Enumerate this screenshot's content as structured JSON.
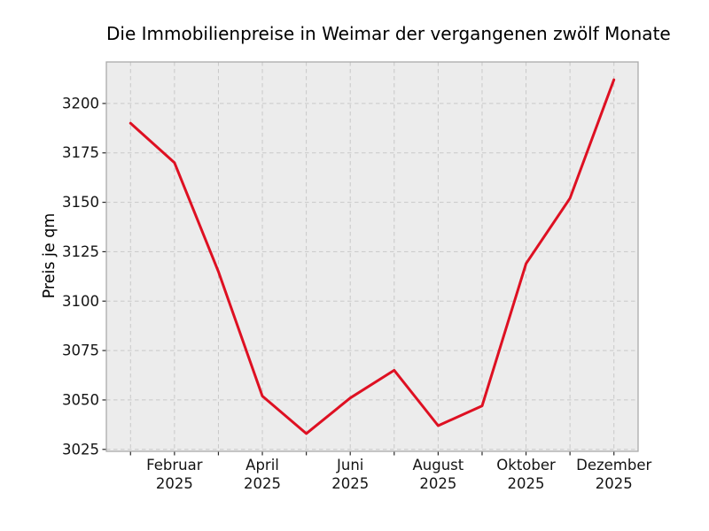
{
  "chart_data": {
    "type": "line",
    "title": "Die Immobilienpreise in Weimar der vergangenen zwölf Monate",
    "xlabel": "",
    "ylabel": "Preis je qm",
    "x": [
      1,
      2,
      3,
      4,
      5,
      6,
      7,
      8,
      9,
      10,
      11,
      12
    ],
    "values": [
      3190,
      3170,
      3115,
      3052,
      3033,
      3051,
      3065,
      3037,
      3047,
      3119,
      3152,
      3212
    ],
    "xlim": [
      0.45,
      12.55
    ],
    "ylim": [
      3024,
      3221
    ],
    "yticks": [
      3025,
      3050,
      3075,
      3100,
      3125,
      3150,
      3175,
      3200
    ],
    "xticks": [
      {
        "pos": 2,
        "month": "Februar",
        "year": "2025"
      },
      {
        "pos": 4,
        "month": "April",
        "year": "2025"
      },
      {
        "pos": 6,
        "month": "Juni",
        "year": "2025"
      },
      {
        "pos": 8,
        "month": "August",
        "year": "2025"
      },
      {
        "pos": 10,
        "month": "Oktober",
        "year": "2025"
      },
      {
        "pos": 12,
        "month": "Dezember",
        "year": "2025"
      }
    ],
    "grid": true,
    "legend": null,
    "styles": {
      "line_color": "#de1022",
      "line_width": 3,
      "plot_bg": "#ececec",
      "grid_color": "#c8c8c8",
      "spine_color": "#aaaaaa",
      "tick_color": "#262626",
      "text_color": "#141414",
      "figure_bg": "#ffffff"
    }
  }
}
